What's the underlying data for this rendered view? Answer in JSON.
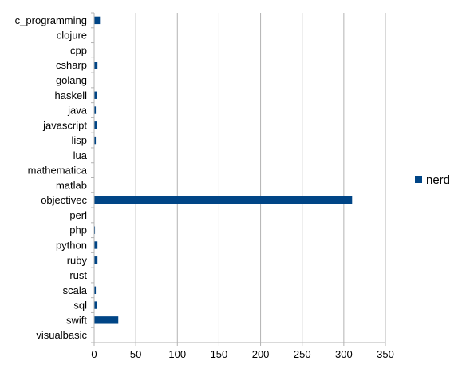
{
  "chart_data": {
    "type": "bar",
    "orientation": "horizontal",
    "categories": [
      "c_programming",
      "clojure",
      "cpp",
      "csharp",
      "golang",
      "haskell",
      "java",
      "javascript",
      "lisp",
      "lua",
      "mathematica",
      "matlab",
      "objectivec",
      "perl",
      "php",
      "python",
      "ruby",
      "rust",
      "scala",
      "sql",
      "swift",
      "visualbasic"
    ],
    "series": [
      {
        "name": "nerd",
        "values": [
          7,
          0,
          0,
          4,
          0,
          3,
          2,
          3,
          2,
          0,
          0,
          0,
          310,
          0,
          1,
          4,
          4,
          0,
          2,
          3,
          29,
          0
        ]
      }
    ],
    "xlim": [
      0,
      350
    ],
    "xticks": [
      0,
      50,
      100,
      150,
      200,
      250,
      300,
      350
    ],
    "grid": "vertical",
    "legend_position": "right",
    "title": "",
    "xlabel": "",
    "ylabel": ""
  },
  "colors": {
    "bar": "#004586",
    "grid": "#b3b3b3",
    "axis": "#b3b3b3"
  }
}
